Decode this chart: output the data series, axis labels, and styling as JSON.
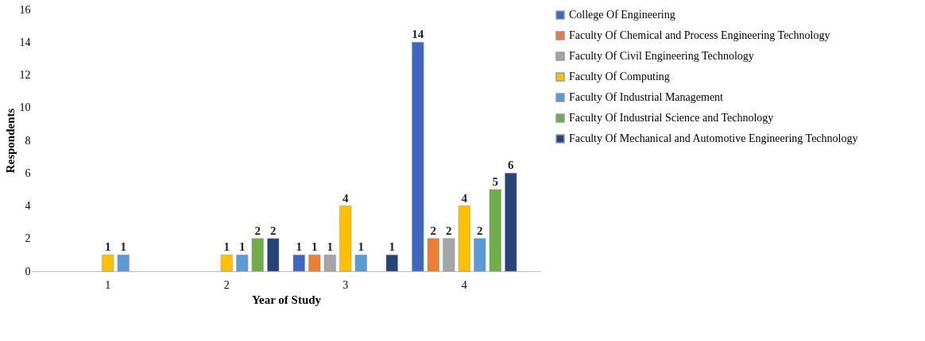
{
  "chart_data": {
    "type": "bar",
    "xlabel": "Year of Study",
    "ylabel": "Respondents",
    "categories": [
      "1",
      "2",
      "3",
      "4"
    ],
    "series": [
      {
        "name": "College Of Engineering",
        "color": "#3f66c0",
        "values": [
          null,
          null,
          1,
          14
        ]
      },
      {
        "name": "Faculty Of Chemical and Process Engineering Technology",
        "color": "#ed7d31",
        "values": [
          null,
          null,
          1,
          2
        ]
      },
      {
        "name": "Faculty Of Civil Engineering Technology",
        "color": "#a5a5a5",
        "values": [
          null,
          null,
          1,
          2
        ]
      },
      {
        "name": "Faculty Of Computing",
        "color": "#ffc000",
        "values": [
          1,
          1,
          4,
          4
        ]
      },
      {
        "name": "Faculty Of Industrial Management",
        "color": "#5b9bd5",
        "values": [
          1,
          1,
          1,
          2
        ]
      },
      {
        "name": "Faculty Of Industrial Science and Technology",
        "color": "#70ad47",
        "values": [
          null,
          2,
          null,
          5
        ]
      },
      {
        "name": "Faculty Of Mechanical and Automotive Engineering Technology",
        "color": "#264478",
        "values": [
          null,
          2,
          1,
          6
        ]
      }
    ],
    "ylim": [
      0,
      16
    ],
    "yticks": [
      0,
      2,
      4,
      6,
      8,
      10,
      12,
      14,
      16
    ],
    "grid": false,
    "legend": "right",
    "data_labels": true
  }
}
